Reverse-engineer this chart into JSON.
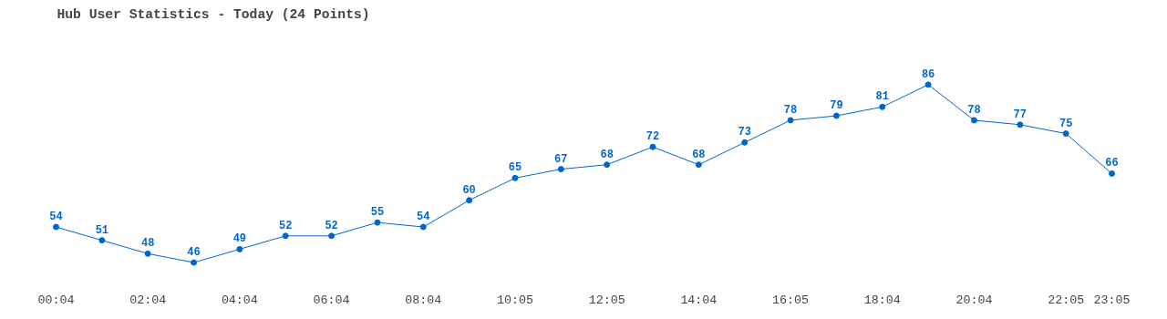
{
  "chart_data": {
    "type": "line",
    "title": "Hub User Statistics - Today (24 Points)",
    "categories": [
      "00:04",
      null,
      "02:04",
      null,
      "04:04",
      null,
      "06:04",
      null,
      "08:04",
      null,
      "10:05",
      null,
      "12:05",
      null,
      "14:04",
      null,
      "16:05",
      null,
      "18:04",
      null,
      "20:04",
      null,
      "22:05",
      "23:05"
    ],
    "series": [
      {
        "color": "#0066cc",
        "values": [
          54,
          51,
          48,
          46,
          49,
          52,
          52,
          55,
          54,
          60,
          65,
          67,
          68,
          72,
          68,
          73,
          78,
          79,
          81,
          86,
          78,
          77,
          75,
          66
        ]
      }
    ],
    "data_labels": true,
    "marker": "circle",
    "line_style": "solid",
    "grid": false,
    "tick_labels": "x"
  }
}
